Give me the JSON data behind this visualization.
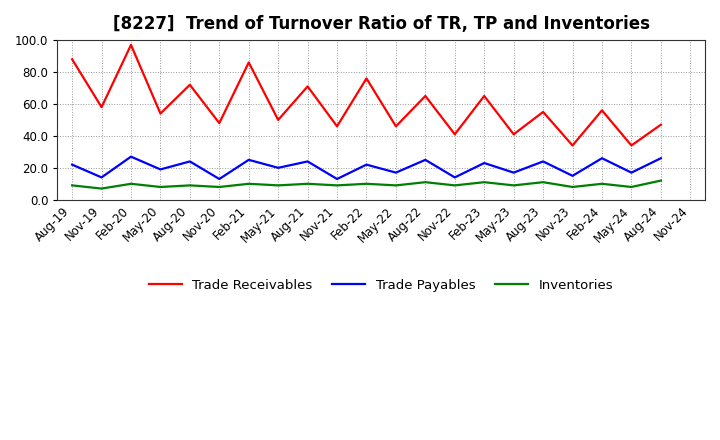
{
  "title": "[8227]  Trend of Turnover Ratio of TR, TP and Inventories",
  "ylim": [
    0.0,
    100.0
  ],
  "yticks": [
    0.0,
    20.0,
    40.0,
    60.0,
    80.0,
    100.0
  ],
  "x_labels": [
    "Aug-19",
    "Nov-19",
    "Feb-20",
    "May-20",
    "Aug-20",
    "Nov-20",
    "Feb-21",
    "May-21",
    "Aug-21",
    "Nov-21",
    "Feb-22",
    "May-22",
    "Aug-22",
    "Nov-22",
    "Feb-23",
    "May-23",
    "Aug-23",
    "Nov-23",
    "Feb-24",
    "May-24",
    "Aug-24",
    "Nov-24"
  ],
  "trade_receivables": [
    88,
    58,
    97,
    54,
    72,
    48,
    86,
    50,
    71,
    46,
    76,
    46,
    65,
    41,
    65,
    41,
    55,
    34,
    56,
    34,
    47,
    null
  ],
  "trade_payables": [
    22,
    14,
    27,
    19,
    24,
    13,
    25,
    20,
    24,
    13,
    22,
    17,
    25,
    14,
    23,
    17,
    24,
    15,
    26,
    17,
    26,
    null
  ],
  "inventories": [
    9,
    7,
    10,
    8,
    9,
    8,
    10,
    9,
    10,
    9,
    10,
    9,
    11,
    9,
    11,
    9,
    11,
    8,
    10,
    8,
    12,
    null
  ],
  "color_tr": "#FF0000",
  "color_tp": "#0000FF",
  "color_inv": "#008000",
  "line_width": 1.6,
  "background_color": "#FFFFFF",
  "grid_color": "#999999",
  "title_fontsize": 12,
  "legend_fontsize": 9.5,
  "tick_fontsize": 8.5,
  "xtick_rotation": 45,
  "legend_label_tr": "Trade Receivables",
  "legend_label_tp": "Trade Payables",
  "legend_label_inv": "Inventories"
}
